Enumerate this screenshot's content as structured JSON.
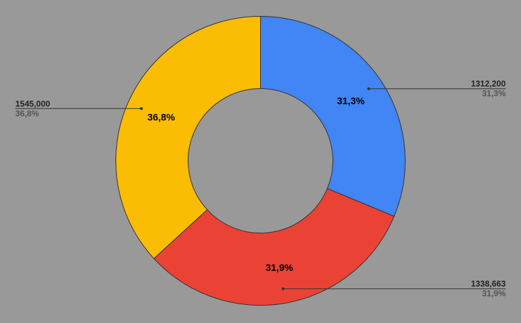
{
  "chart_data": {
    "type": "pie",
    "donut": true,
    "title": "",
    "background": "#999999",
    "categories": [
      "",
      "",
      ""
    ],
    "values": [
      1312200,
      1338663,
      1545000
    ],
    "value_labels": [
      "1312,200",
      "1338,663",
      "1545,000"
    ],
    "percent_labels": [
      "31,3%",
      "31,9%",
      "36,8%"
    ],
    "colors": [
      "#4285F4",
      "#EA4335",
      "#FBBC04"
    ],
    "legend": "none"
  }
}
